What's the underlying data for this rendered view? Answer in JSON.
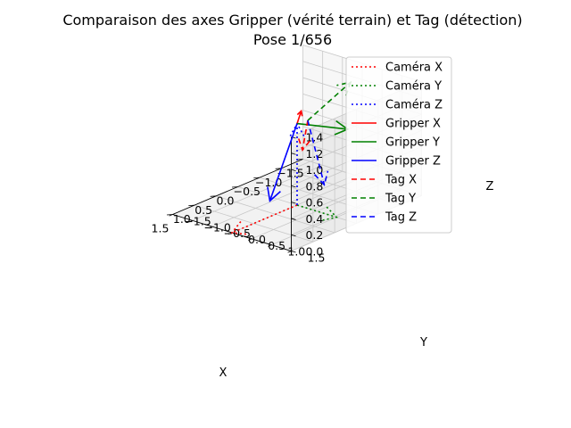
{
  "chart_data": {
    "type": "line",
    "projection": "3d",
    "title": "Comparaison des axes Gripper (vérité terrain) et Tag (détection)",
    "subtitle": "Pose 1/656",
    "xlabel": "X",
    "ylabel": "Y",
    "zlabel": "Z",
    "xlim": [
      -1.5,
      1.5
    ],
    "ylim": [
      -1.5,
      1.5
    ],
    "zlim": [
      0.0,
      1.4
    ],
    "x_ticks": [
      "−1.5",
      "−1.0",
      "−0.5",
      "0.0",
      "0.5",
      "1.0",
      "1.5"
    ],
    "y_ticks": [
      "−1.5",
      "−1.0",
      "−0.5",
      "0.0",
      "0.5",
      "1.0",
      "1.5"
    ],
    "z_ticks": [
      "0.0",
      "0.2",
      "0.4",
      "0.6",
      "0.8",
      "1.0",
      "1.2",
      "1.4"
    ],
    "grid": true,
    "legend_position": "top-right",
    "series": [
      {
        "name": "Caméra X",
        "color": "#ff0000",
        "style": "dotted",
        "origin": [
          0,
          0,
          0
        ],
        "end": [
          1.5,
          0,
          0
        ]
      },
      {
        "name": "Caméra Y",
        "color": "#008000",
        "style": "dotted",
        "origin": [
          0,
          0,
          0
        ],
        "end": [
          0,
          1.0,
          0
        ]
      },
      {
        "name": "Caméra Z",
        "color": "#0000ff",
        "style": "dotted",
        "origin": [
          0,
          0,
          0
        ],
        "end": [
          0,
          0,
          1.0
        ]
      },
      {
        "name": "Gripper X",
        "color": "#ff0000",
        "style": "solid",
        "origin": [
          0,
          0,
          1.0
        ],
        "end": [
          -0.05,
          0.05,
          1.15
        ]
      },
      {
        "name": "Gripper Y",
        "color": "#008000",
        "style": "solid",
        "origin": [
          0,
          0,
          1.0
        ],
        "end": [
          0.2,
          1.5,
          1.2
        ]
      },
      {
        "name": "Gripper Z",
        "color": "#0000ff",
        "style": "solid",
        "origin": [
          0,
          0,
          1.0
        ],
        "end": [
          0.9,
          0.3,
          0.3
        ]
      },
      {
        "name": "Tag X",
        "color": "#ff0000",
        "style": "dashed",
        "origin": [
          -0.2,
          0.05,
          1.0
        ],
        "end": [
          0.65,
          0.85,
          0.95
        ]
      },
      {
        "name": "Tag Y",
        "color": "#008000",
        "style": "dashed",
        "origin": [
          -0.2,
          0.05,
          1.0
        ],
        "end": [
          -1.05,
          0.2,
          1.3
        ]
      },
      {
        "name": "Tag Z",
        "color": "#0000ff",
        "style": "dashed",
        "origin": [
          -0.2,
          0.05,
          1.0
        ],
        "end": [
          -0.9,
          -0.3,
          0.0
        ]
      }
    ]
  }
}
